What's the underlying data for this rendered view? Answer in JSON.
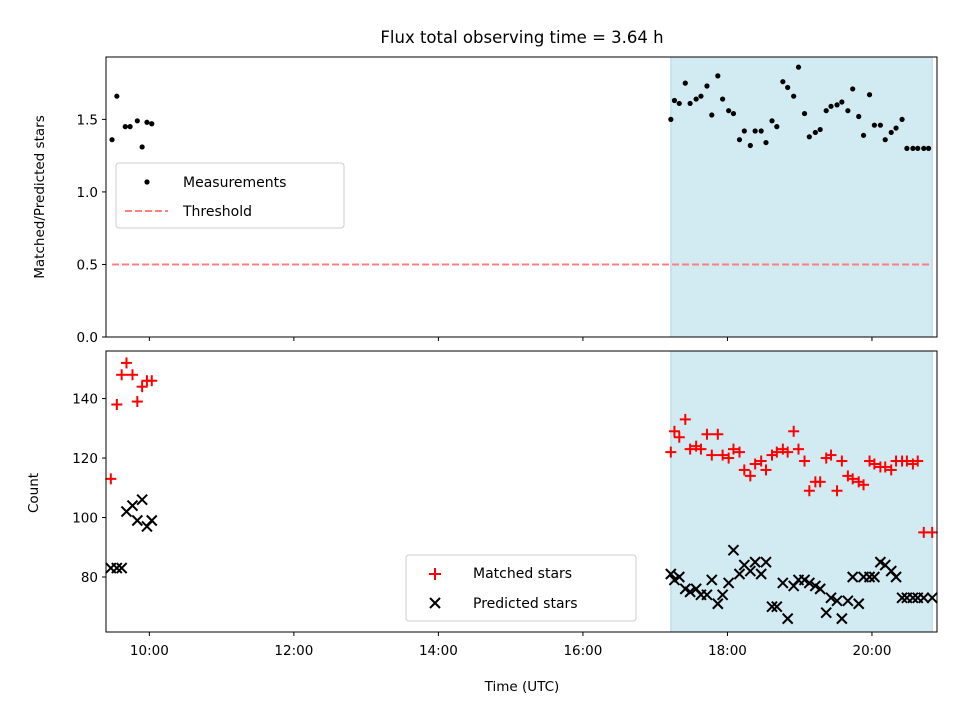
{
  "title": "Flux total observing time = 3.64 h",
  "colors": {
    "measurements": "#000000",
    "threshold": "#ff7f7f",
    "matched": "#ff0000",
    "predicted": "#000000",
    "shade": "#add8e6"
  },
  "chart_data": [
    {
      "type": "scatter",
      "ylabel": "Matched/Predicted stars",
      "xlim": [
        "09:24",
        "20:54"
      ],
      "ylim": [
        0,
        1.93
      ],
      "yticks": [
        0.0,
        0.5,
        1.0,
        1.5
      ],
      "ytick_labels": [
        "0.0",
        "0.5",
        "1.0",
        "1.5"
      ],
      "grid": false,
      "legend_position": "center-left",
      "shaded_span": [
        "17:13",
        "20:50"
      ],
      "series": [
        {
          "name": "Measurements",
          "marker": "dot",
          "x": [
            "09:29",
            "09:33",
            "09:40",
            "09:44",
            "09:50",
            "09:54",
            "09:58",
            "10:02",
            "17:13",
            "17:16",
            "17:20",
            "17:25",
            "17:29",
            "17:34",
            "17:38",
            "17:43",
            "17:47",
            "17:52",
            "17:56",
            "18:01",
            "18:05",
            "18:10",
            "18:14",
            "18:19",
            "18:23",
            "18:28",
            "18:32",
            "18:37",
            "18:41",
            "18:46",
            "18:50",
            "18:55",
            "18:59",
            "19:04",
            "19:08",
            "19:13",
            "19:17",
            "19:22",
            "19:26",
            "19:31",
            "19:35",
            "19:40",
            "19:44",
            "19:49",
            "19:53",
            "19:58",
            "20:02",
            "20:07",
            "20:11",
            "20:16",
            "20:20",
            "20:25",
            "20:29",
            "20:34",
            "20:38",
            "20:43",
            "20:47"
          ],
          "y": [
            1.36,
            1.66,
            1.45,
            1.45,
            1.49,
            1.31,
            1.48,
            1.47,
            1.5,
            1.63,
            1.61,
            1.75,
            1.61,
            1.64,
            1.66,
            1.73,
            1.53,
            1.8,
            1.64,
            1.56,
            1.54,
            1.36,
            1.42,
            1.32,
            1.42,
            1.42,
            1.34,
            1.49,
            1.45,
            1.76,
            1.72,
            1.66,
            1.86,
            1.54,
            1.38,
            1.41,
            1.43,
            1.56,
            1.59,
            1.6,
            1.62,
            1.56,
            1.71,
            1.52,
            1.39,
            1.67,
            1.46,
            1.46,
            1.36,
            1.41,
            1.44,
            1.5,
            1.3,
            1.3,
            1.3,
            1.3,
            1.3
          ]
        },
        {
          "name": "Threshold",
          "marker": "dashed-line",
          "x": [
            "09:29",
            "20:50"
          ],
          "y": [
            0.5,
            0.5
          ]
        }
      ]
    },
    {
      "type": "scatter",
      "xlabel": "Time (UTC)",
      "ylabel": "Count",
      "xlim": [
        "09:24",
        "20:54"
      ],
      "ylim": [
        61.5,
        156
      ],
      "xticks": [
        "10:00",
        "12:00",
        "14:00",
        "16:00",
        "18:00",
        "20:00"
      ],
      "yticks": [
        80,
        100,
        120,
        140
      ],
      "grid": false,
      "legend_position": "bottom-center",
      "shaded_span": [
        "17:13",
        "20:50"
      ],
      "series": [
        {
          "name": "Matched stars",
          "marker": "plus",
          "x": [
            "09:28",
            "09:33",
            "09:37",
            "09:41",
            "09:46",
            "09:50",
            "09:54",
            "09:58",
            "10:02",
            "17:13",
            "17:16",
            "17:20",
            "17:25",
            "17:29",
            "17:34",
            "17:38",
            "17:43",
            "17:47",
            "17:52",
            "17:56",
            "18:01",
            "18:05",
            "18:10",
            "18:14",
            "18:19",
            "18:23",
            "18:28",
            "18:32",
            "18:37",
            "18:41",
            "18:46",
            "18:50",
            "18:55",
            "18:59",
            "19:04",
            "19:08",
            "19:13",
            "19:17",
            "19:22",
            "19:26",
            "19:31",
            "19:35",
            "19:40",
            "19:44",
            "19:49",
            "19:53",
            "19:58",
            "20:02",
            "20:07",
            "20:11",
            "20:16",
            "20:20",
            "20:25",
            "20:29",
            "20:34",
            "20:38",
            "20:43",
            "20:50"
          ],
          "y": [
            113,
            138,
            148,
            152,
            148,
            139,
            144,
            146,
            146,
            122,
            129,
            127,
            133,
            123,
            124,
            123,
            128,
            121,
            128,
            121,
            120,
            123,
            122,
            116,
            114,
            118,
            119,
            116,
            121,
            122,
            123,
            122,
            129,
            123,
            119,
            109,
            112,
            112,
            120,
            121,
            109,
            119,
            114,
            113,
            112,
            111,
            119,
            118,
            117,
            117,
            116,
            119,
            119,
            119,
            118,
            119,
            95,
            95
          ]
        },
        {
          "name": "Predicted stars",
          "marker": "x",
          "x": [
            "09:28",
            "09:33",
            "09:37",
            "09:41",
            "09:46",
            "09:50",
            "09:54",
            "09:58",
            "10:02",
            "17:13",
            "17:16",
            "17:20",
            "17:25",
            "17:29",
            "17:34",
            "17:38",
            "17:43",
            "17:47",
            "17:52",
            "17:56",
            "18:01",
            "18:05",
            "18:10",
            "18:14",
            "18:19",
            "18:23",
            "18:28",
            "18:32",
            "18:37",
            "18:41",
            "18:46",
            "18:50",
            "18:55",
            "18:59",
            "19:04",
            "19:08",
            "19:13",
            "19:17",
            "19:22",
            "19:26",
            "19:31",
            "19:35",
            "19:40",
            "19:44",
            "19:49",
            "19:53",
            "19:58",
            "20:02",
            "20:07",
            "20:11",
            "20:16",
            "20:20",
            "20:25",
            "20:29",
            "20:34",
            "20:38",
            "20:43",
            "20:50"
          ],
          "y": [
            83,
            83,
            83,
            102,
            104,
            99,
            106,
            97,
            99,
            81,
            79,
            80,
            76,
            75,
            76,
            74,
            74,
            79,
            71,
            74,
            78,
            89,
            81,
            84,
            82,
            85,
            81,
            85,
            70,
            70,
            78,
            66,
            77,
            79,
            79,
            78,
            77,
            76,
            68,
            73,
            72,
            66,
            72,
            80,
            71,
            80,
            80,
            80,
            85,
            84,
            82,
            80,
            73,
            73,
            73,
            73,
            73,
            73
          ]
        }
      ]
    }
  ]
}
